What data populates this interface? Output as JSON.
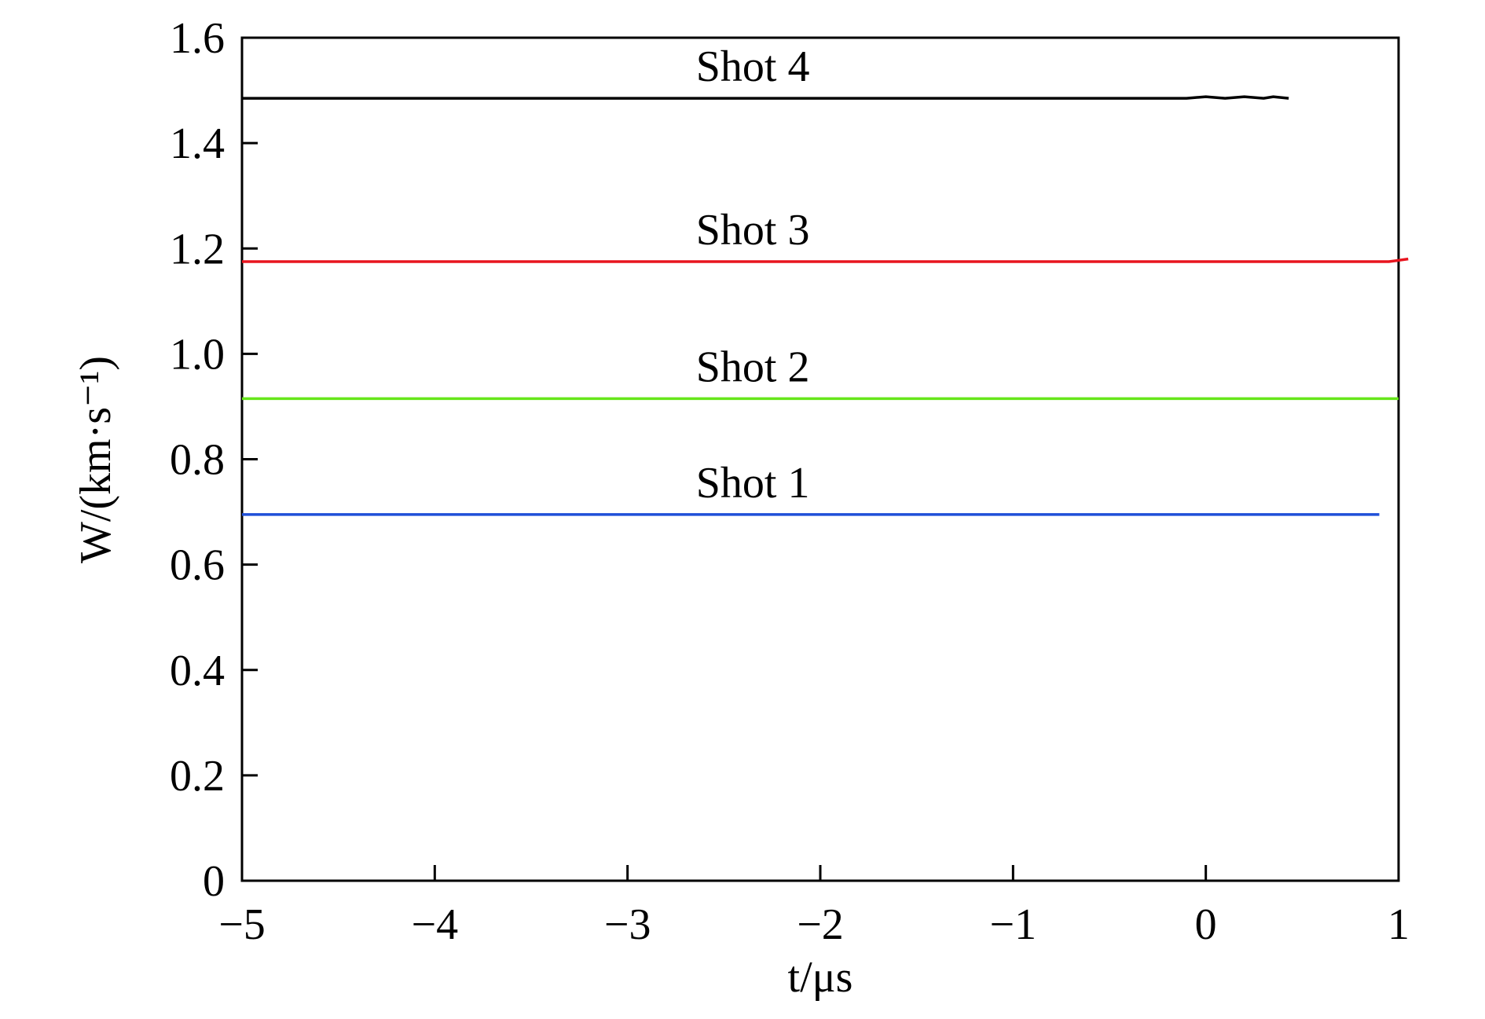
{
  "chart_data": {
    "type": "line",
    "xlabel": "t/μs",
    "ylabel": "W/(km·s⁻¹)",
    "xlim": [
      -5,
      1
    ],
    "ylim": [
      0,
      1.6
    ],
    "xticks": [
      {
        "value": -5,
        "label": "−5"
      },
      {
        "value": -4,
        "label": "−4"
      },
      {
        "value": -3,
        "label": "−3"
      },
      {
        "value": -2,
        "label": "−2"
      },
      {
        "value": -1,
        "label": "−1"
      },
      0,
      1
    ],
    "yticks": [
      0,
      0.2,
      0.4,
      0.6,
      0.8,
      {
        "value": 1,
        "label": "1.0"
      },
      1.2,
      1.4,
      1.6
    ],
    "grid": false,
    "series": [
      {
        "name": "Shot 1",
        "color": "#1f4fd8",
        "x": [
          -5,
          0.9
        ],
        "values": [
          0.695,
          0.695
        ]
      },
      {
        "name": "Shot 2",
        "color": "#66e61a",
        "x": [
          -5,
          1
        ],
        "values": [
          0.915,
          0.915
        ]
      },
      {
        "name": "Shot 3",
        "color": "#e8141e",
        "x": [
          -5,
          0.95,
          1.05
        ],
        "values": [
          1.175,
          1.175,
          1.18
        ]
      },
      {
        "name": "Shot 4",
        "color": "#000000",
        "x": [
          -5,
          -0.1,
          0,
          0.1,
          0.2,
          0.3,
          0.35,
          0.43
        ],
        "values": [
          1.485,
          1.485,
          1.488,
          1.485,
          1.488,
          1.485,
          1.488,
          1.485
        ]
      }
    ]
  }
}
